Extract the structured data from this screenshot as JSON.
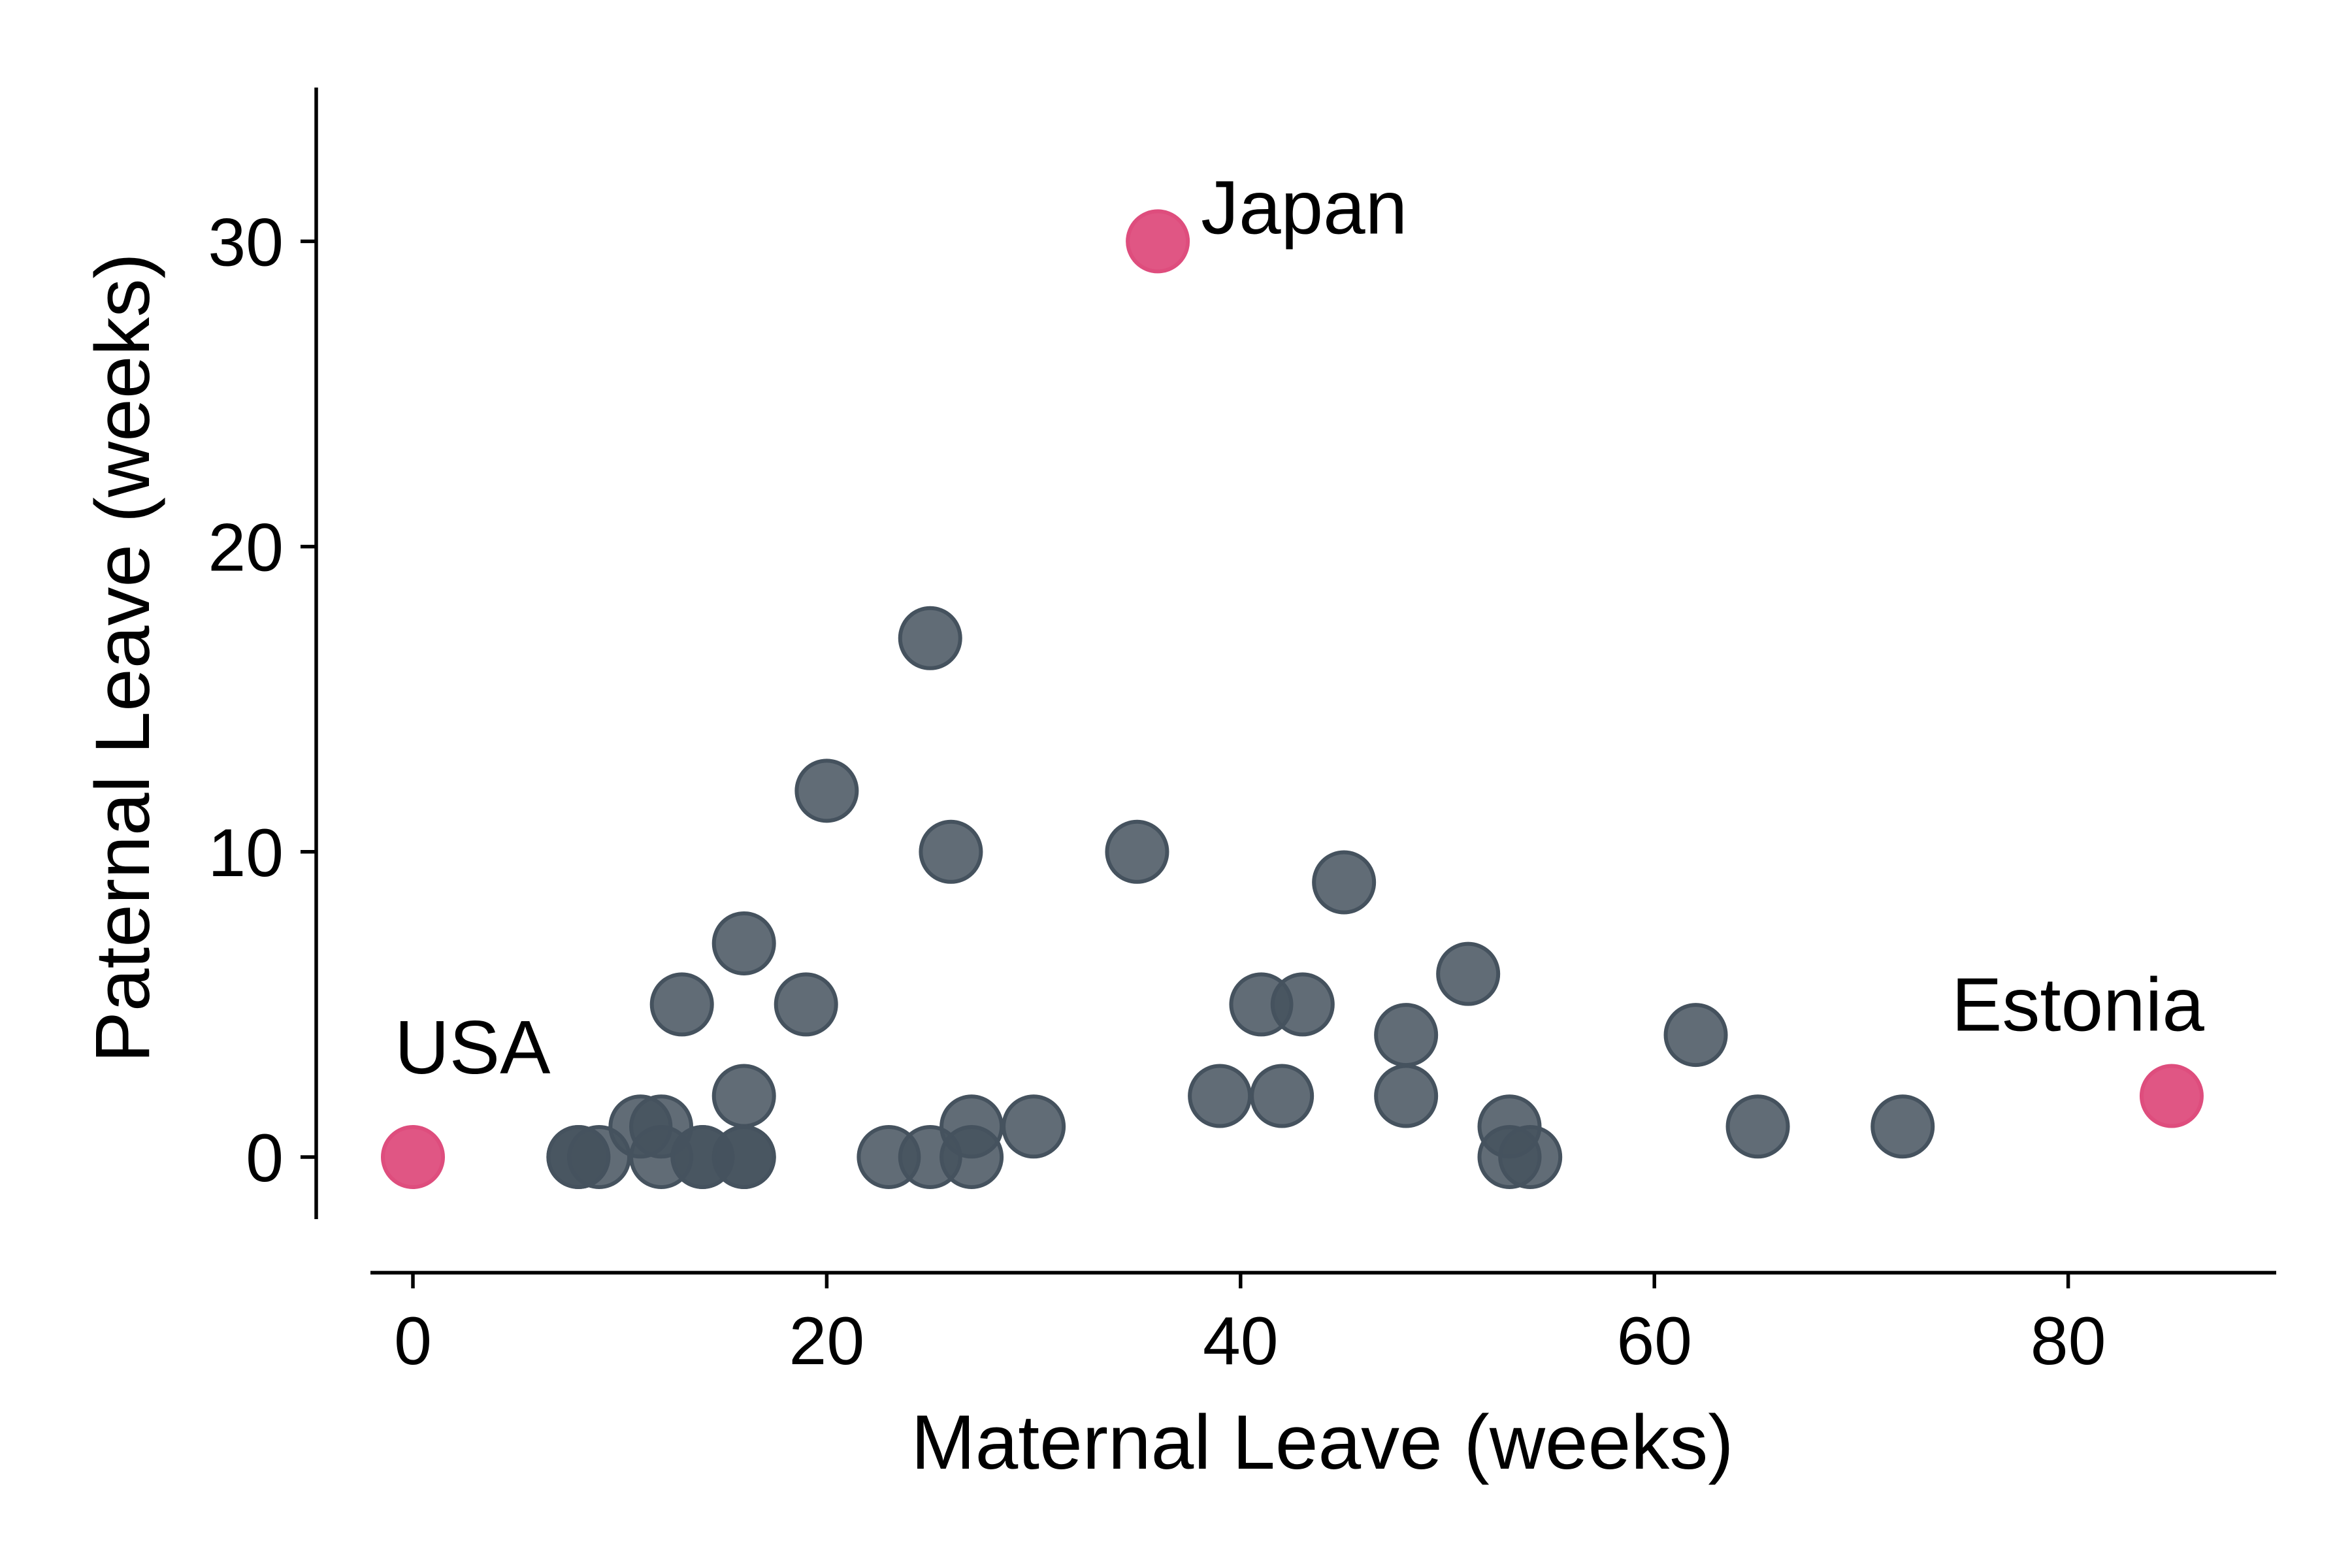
{
  "chart_data": {
    "type": "scatter",
    "title": "",
    "xlabel": "Maternal Leave (weeks)",
    "ylabel": "Paternal Leave (weeks)",
    "xlim": [
      -2,
      90
    ],
    "ylim": [
      -2,
      35
    ],
    "xticks": [
      0,
      20,
      40,
      60,
      80
    ],
    "yticks": [
      0,
      10,
      20,
      30
    ],
    "grid": false,
    "legend": "none",
    "colors": {
      "default": "#45525e",
      "highlight": "#de4d7d"
    },
    "points": [
      {
        "x": 0,
        "y": 0,
        "label": "USA",
        "highlight": true
      },
      {
        "x": 36,
        "y": 30,
        "label": "Japan",
        "highlight": true
      },
      {
        "x": 85,
        "y": 2,
        "label": "Estonia",
        "highlight": true
      },
      {
        "x": 8,
        "y": 0
      },
      {
        "x": 8,
        "y": 0
      },
      {
        "x": 9,
        "y": 0
      },
      {
        "x": 11,
        "y": 1
      },
      {
        "x": 12,
        "y": 1
      },
      {
        "x": 12,
        "y": 0
      },
      {
        "x": 13,
        "y": 5
      },
      {
        "x": 14,
        "y": 0
      },
      {
        "x": 14,
        "y": 0
      },
      {
        "x": 16,
        "y": 7
      },
      {
        "x": 16,
        "y": 2
      },
      {
        "x": 16,
        "y": 0
      },
      {
        "x": 16,
        "y": 0
      },
      {
        "x": 19,
        "y": 5
      },
      {
        "x": 20,
        "y": 12
      },
      {
        "x": 23,
        "y": 0
      },
      {
        "x": 25,
        "y": 17
      },
      {
        "x": 25,
        "y": 0
      },
      {
        "x": 26,
        "y": 10
      },
      {
        "x": 27,
        "y": 1
      },
      {
        "x": 27,
        "y": 0
      },
      {
        "x": 30,
        "y": 1
      },
      {
        "x": 35,
        "y": 10
      },
      {
        "x": 39,
        "y": 2
      },
      {
        "x": 41,
        "y": 5
      },
      {
        "x": 42,
        "y": 2
      },
      {
        "x": 43,
        "y": 5
      },
      {
        "x": 45,
        "y": 9
      },
      {
        "x": 48,
        "y": 4
      },
      {
        "x": 48,
        "y": 2
      },
      {
        "x": 51,
        "y": 6
      },
      {
        "x": 53,
        "y": 1
      },
      {
        "x": 53,
        "y": 0
      },
      {
        "x": 54,
        "y": 0
      },
      {
        "x": 62,
        "y": 4
      },
      {
        "x": 65,
        "y": 1
      },
      {
        "x": 72,
        "y": 1
      }
    ]
  }
}
